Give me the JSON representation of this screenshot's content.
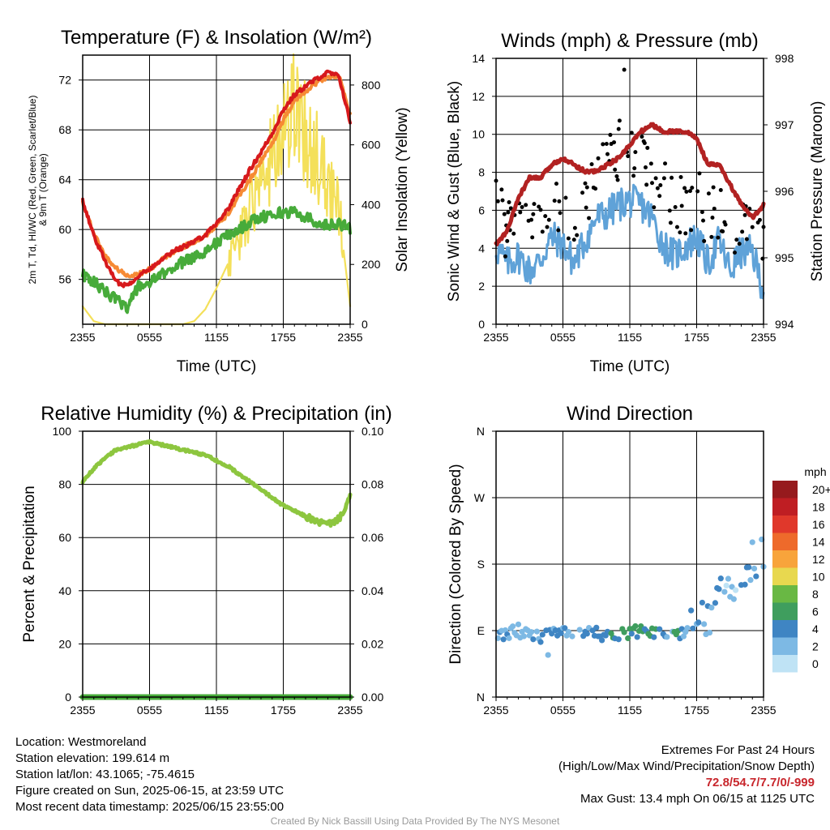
{
  "chart_data": [
    {
      "type": "line",
      "title": "Temperature (F) & Insolation (W/m²)",
      "xlabel": "Time (UTC)",
      "ylabel_left": "2m T, Td, HI/WC (Red, Green, Scarlet/Blue) & 9m T (Orange)",
      "ylabel_right": "Solar Insolation (Yellow)",
      "x_ticks": [
        "2355",
        "0555",
        "1155",
        "1755",
        "2355"
      ],
      "y_ticks_left": [
        "56",
        "60",
        "64",
        "68",
        "72"
      ],
      "y_ticks_right": [
        "0",
        "200",
        "400",
        "600",
        "800"
      ],
      "ylim_left": [
        52.4,
        74.0
      ],
      "ylim_right": [
        0,
        900
      ],
      "x_hours": [
        0,
        1,
        2,
        3,
        4,
        5,
        6,
        7,
        8,
        9,
        10,
        11,
        12,
        13,
        14,
        15,
        16,
        17,
        18,
        19,
        20,
        21,
        22,
        23,
        24
      ],
      "series": [
        {
          "name": "2m T",
          "color": "#d7191c",
          "axis": "left",
          "values": [
            62.3,
            59.5,
            57.5,
            55.8,
            55.5,
            56.3,
            56.8,
            57.6,
            58.2,
            58.6,
            59.0,
            59.6,
            60.5,
            61.6,
            63.2,
            64.8,
            66.2,
            67.7,
            69.6,
            70.8,
            71.5,
            72.1,
            72.6,
            72.3,
            68.6
          ]
        },
        {
          "name": "9m T",
          "color": "#f68a34",
          "axis": "left",
          "values": [
            62.2,
            59.7,
            57.9,
            56.9,
            56.3,
            56.4,
            56.8,
            57.5,
            58.1,
            58.6,
            59.0,
            59.5,
            60.3,
            61.2,
            62.6,
            64.0,
            65.5,
            66.9,
            68.8,
            70.3,
            71.1,
            71.8,
            72.3,
            72.3,
            69.2
          ]
        },
        {
          "name": "Td",
          "color": "#47ab3a",
          "axis": "left",
          "values": [
            56.4,
            55.8,
            55.0,
            54.4,
            53.8,
            55.4,
            55.7,
            56.3,
            56.9,
            57.4,
            57.8,
            58.3,
            58.9,
            59.5,
            60.0,
            60.6,
            61.0,
            61.2,
            61.4,
            61.4,
            61.0,
            60.6,
            60.3,
            60.5,
            60.1
          ]
        },
        {
          "name": "Solar Insolation",
          "color": "#f4e05a",
          "axis": "right",
          "values": [
            60,
            10,
            0,
            0,
            0,
            0,
            0,
            0,
            0,
            0,
            10,
            50,
            120,
            200,
            280,
            380,
            460,
            560,
            640,
            720,
            640,
            560,
            460,
            380,
            60
          ]
        }
      ]
    },
    {
      "type": "line",
      "title": "Winds (mph) & Pressure (mb)",
      "xlabel": "Time (UTC)",
      "ylabel_left": "Sonic Wind & Gust (Blue, Black)",
      "ylabel_right": "Station Pressure (Maroon)",
      "x_ticks": [
        "2355",
        "0555",
        "1155",
        "1755",
        "2355"
      ],
      "y_ticks_left": [
        "0",
        "2",
        "4",
        "6",
        "8",
        "10",
        "12",
        "14"
      ],
      "y_ticks_right": [
        "994",
        "995",
        "996",
        "997",
        "998"
      ],
      "ylim_left": [
        0,
        14
      ],
      "ylim_right": [
        994,
        998
      ],
      "x_hours": [
        0,
        1,
        2,
        3,
        4,
        5,
        6,
        7,
        8,
        9,
        10,
        11,
        12,
        13,
        14,
        15,
        16,
        17,
        18,
        19,
        20,
        21,
        22,
        23,
        24
      ],
      "series": [
        {
          "name": "Sonic Wind",
          "color": "#5fa2d8",
          "axis": "left",
          "values": [
            4.0,
            3.2,
            3.6,
            2.8,
            3.4,
            4.6,
            4.2,
            3.2,
            4.4,
            5.6,
            5.8,
            6.3,
            6.5,
            6.3,
            5.6,
            4.2,
            3.6,
            4.1,
            4.6,
            3.2,
            4.4,
            2.8,
            3.8,
            3.8,
            1.8
          ]
        },
        {
          "name": "Gust",
          "color": "#000000",
          "axis": "left",
          "values": [
            6.0,
            5.0,
            5.5,
            4.5,
            5.5,
            6.2,
            6.0,
            5.5,
            6.5,
            8.5,
            9.0,
            9.2,
            9.0,
            8.6,
            7.8,
            7.2,
            6.5,
            6.0,
            6.8,
            5.5,
            5.8,
            4.8,
            5.5,
            5.0,
            4.5
          ]
        },
        {
          "name": "Station Pressure",
          "color": "#b22222",
          "axis": "right",
          "values": [
            995.2,
            995.4,
            995.9,
            996.2,
            996.2,
            996.4,
            996.5,
            996.4,
            996.3,
            996.3,
            996.4,
            996.5,
            996.7,
            996.9,
            997.0,
            996.9,
            996.9,
            996.9,
            996.8,
            996.4,
            996.4,
            996.1,
            995.8,
            995.6,
            995.8
          ]
        }
      ],
      "max_gust_point": {
        "hour": 11.5,
        "value": 13.4
      }
    },
    {
      "type": "line",
      "title": "Relative Humidity (%) & Precipitation (in)",
      "xlabel": "",
      "ylabel_left": "Percent & Precipitation",
      "x_ticks": [
        "2355",
        "0555",
        "1155",
        "1755",
        "2355"
      ],
      "y_ticks_left": [
        "0",
        "20",
        "40",
        "60",
        "80",
        "100"
      ],
      "y_ticks_right": [
        "0.00",
        "0.02",
        "0.04",
        "0.06",
        "0.08",
        "0.10"
      ],
      "ylim_left": [
        0,
        100
      ],
      "ylim_right": [
        0,
        0.1
      ],
      "x_hours": [
        0,
        1,
        2,
        3,
        4,
        5,
        6,
        7,
        8,
        9,
        10,
        11,
        12,
        13,
        14,
        15,
        16,
        17,
        18,
        19,
        20,
        21,
        22,
        23,
        24
      ],
      "series": [
        {
          "name": "Relative Humidity",
          "color": "#8dc63f",
          "axis": "left",
          "values": [
            81,
            86,
            90,
            93,
            94,
            95,
            96,
            95,
            94,
            93,
            92,
            91,
            89,
            87,
            84,
            81,
            78,
            75,
            72,
            70,
            68,
            66,
            65,
            67,
            75
          ]
        },
        {
          "name": "Precipitation",
          "color": "#47ab3a",
          "axis": "right",
          "values": [
            0,
            0,
            0,
            0,
            0,
            0,
            0,
            0,
            0,
            0,
            0,
            0,
            0,
            0,
            0,
            0,
            0,
            0,
            0,
            0,
            0,
            0,
            0,
            0,
            0
          ]
        }
      ]
    },
    {
      "type": "scatter",
      "title": "Wind Direction",
      "xlabel": "",
      "ylabel_left": "Direction (Colored By Speed)",
      "x_ticks": [
        "2355",
        "0555",
        "1155",
        "1755",
        "2355"
      ],
      "y_ticks_left": [
        "N",
        "E",
        "S",
        "W",
        "N"
      ],
      "ylim_left": [
        0,
        360
      ],
      "direction_trend": {
        "x_hours": [
          0,
          2,
          4,
          6,
          8,
          10,
          12,
          14,
          16,
          18,
          19,
          20,
          21,
          22,
          23,
          24
        ],
        "degrees": [
          85,
          90,
          82,
          92,
          88,
          85,
          87,
          90,
          85,
          95,
          110,
          130,
          150,
          175,
          185,
          190
        ]
      },
      "colorbar": {
        "unit": "mph",
        "labels": [
          "0",
          "2",
          "4",
          "6",
          "8",
          "10",
          "12",
          "14",
          "16",
          "18",
          "20+"
        ],
        "colors": [
          "#bfe3f5",
          "#7db9e4",
          "#3f85c3",
          "#3f9e5e",
          "#69b844",
          "#e8d84f",
          "#f8a43b",
          "#ee6a2b",
          "#e0382b",
          "#bf1e23",
          "#961a1d"
        ]
      }
    }
  ],
  "info": {
    "location": "Location: Westmoreland",
    "elevation": "Station elevation: 199.614 m",
    "latlon": "Station lat/lon: 43.1065; -75.4615",
    "created": "Figure created on Sun, 2025-06-15, at 23:59 UTC",
    "recent": "Most recent data timestamp: 2025/06/15 23:55:00"
  },
  "extremes": {
    "title": "Extremes For Past 24 Hours",
    "legend": "(High/Low/Max Wind/Precipitation/Snow Depth)",
    "values": "72.8/54.7/7.7/0/-999",
    "gust": "Max Gust: 13.4 mph On 06/15 at 1125 UTC"
  },
  "credit": "Created By Nick Bassill Using Data Provided By The NYS Mesonet"
}
